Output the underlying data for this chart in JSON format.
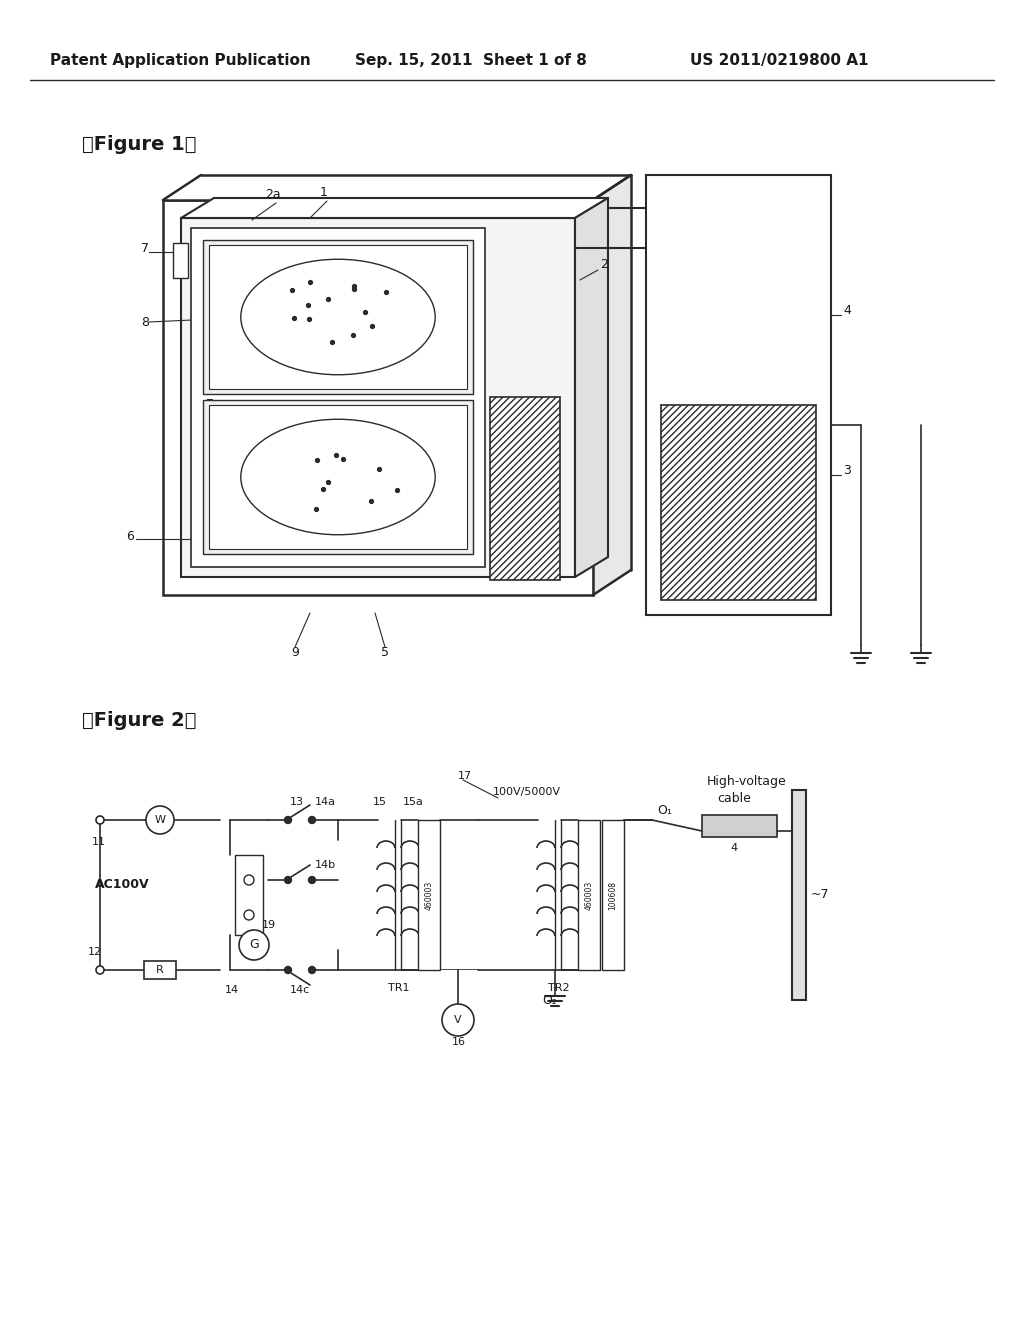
{
  "bg_color": "#ffffff",
  "header_text": "Patent Application Publication",
  "header_date": "Sep. 15, 2011  Sheet 1 of 8",
  "header_patent": "US 2011/0219800 A1",
  "fig1_title": "【Figure 1】",
  "fig2_title": "【Figure 2】",
  "text_color": "#1a1a1a",
  "line_color": "#2a2a2a"
}
